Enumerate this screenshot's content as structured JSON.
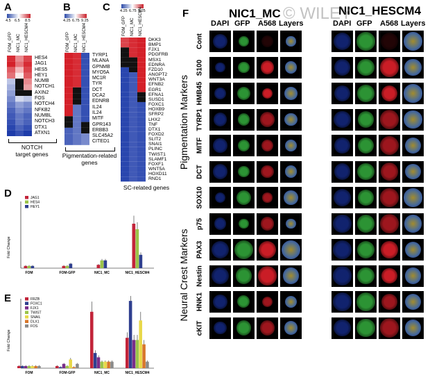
{
  "panels": {
    "A": "A",
    "B": "B",
    "C": "C",
    "D": "D",
    "E": "E",
    "F": "F"
  },
  "panel_a": {
    "scale": [
      "4.5",
      "6.5",
      "8.5"
    ],
    "cols": [
      "FOM_GFP",
      "NIC1_MC",
      "NIC1_HESCM4"
    ],
    "genes": [
      "HES4",
      "JAG1",
      "HES5",
      "HEY1",
      "NUMB",
      "NOTCH1",
      "AXIN2",
      "FOS",
      "NOTCH4",
      "NFKB2",
      "NUMBL",
      "NOTCH3",
      "DTX1",
      "ATXN1"
    ],
    "caption_line1": "NOTCH",
    "caption_line2": "target genes"
  },
  "panel_b": {
    "scale": [
      "4.25",
      "6.75",
      "9.25"
    ],
    "cols": [
      "FOM_GFP",
      "NIC1_MC",
      "NIC1_HESCM4"
    ],
    "genes": [
      "TYRP1",
      "MLANA",
      "GPNMB",
      "MYO5A",
      "MC1R",
      "TYR",
      "DCT",
      "DCA2",
      "EDNRB",
      "IL24",
      "IL24",
      "MITF",
      "GPR143",
      "ERBB3",
      "SLC45A2",
      "CITED1"
    ],
    "caption_line1": "Pigmentation-related",
    "caption_line2": "genes"
  },
  "panel_c": {
    "scale": [
      "4.25",
      "6.75",
      "9.25"
    ],
    "cols": [
      "FOM_GFP",
      "NIC1_MC",
      "NIC1_HESCM4"
    ],
    "genes": [
      "DKK3",
      "BMP1",
      "FJX1",
      "PDGFRB",
      "MSX1",
      "EDNRA",
      "FZD10",
      "ANGPT2",
      "WNT3A",
      "EFNB2",
      "EGR1",
      "EFNA1",
      "SUSD1",
      "FOXC1",
      "HOXB9",
      "SFRP2",
      "LHX2",
      "TNF",
      "DTX1",
      "FOXD2",
      "SLIT2",
      "SNAI1",
      "PLINC",
      "TWIST1",
      "SLAMF1",
      "FOXF1",
      "WNT5A",
      "HOXD11",
      "RND1"
    ],
    "caption": "SC-related genes"
  },
  "panel_d": {
    "ylabel": "Fold Change",
    "legend": [
      "JAG1",
      "HES4",
      "HEY1"
    ],
    "categories": [
      "FOM",
      "FOM-GFP",
      "NIC1_MC",
      "NIC1_HESCM4"
    ],
    "colors": [
      "#c2243a",
      "#9bc44a",
      "#2f3f8f"
    ]
  },
  "panel_e": {
    "ylabel": "Fold Change",
    "legend": [
      "FRZB",
      "FOXC1",
      "FJX1",
      "TWIST",
      "SNAIL",
      "DLX1",
      "FOS"
    ],
    "categories": [
      "FOM",
      "FOM-GFP",
      "NIC1_MC",
      "NIC1_HESCM4"
    ],
    "colors": [
      "#c2243a",
      "#2f3f8f",
      "#7a2d8a",
      "#9bc44a",
      "#e8d84a",
      "#d8762a",
      "#8a8a8a"
    ]
  },
  "chart_data": [
    {
      "type": "bar",
      "categories": [
        "FOM",
        "FOM-GFP",
        "NIC1_MC",
        "NIC1_HESCM4"
      ],
      "series": [
        {
          "name": "JAG1",
          "values": [
            1,
            1,
            1.5,
            20
          ]
        },
        {
          "name": "HES4",
          "values": [
            1,
            1,
            3.5,
            17.5
          ]
        },
        {
          "name": "HEY1",
          "values": [
            1,
            2,
            3.5,
            6
          ]
        }
      ],
      "ylabel": "Fold Change",
      "ylim": [
        0,
        30
      ],
      "legend": "top-left"
    },
    {
      "type": "bar",
      "categories": [
        "FOM",
        "FOM-GFP",
        "NIC1_MC",
        "NIC1_HESCM4"
      ],
      "series": [
        {
          "name": "FRZB",
          "values": [
            1,
            1,
            26,
            14
          ]
        },
        {
          "name": "FOXC1",
          "values": [
            1,
            0.5,
            7,
            31
          ]
        },
        {
          "name": "FJX1",
          "values": [
            1,
            2,
            5,
            13
          ]
        },
        {
          "name": "TWIST",
          "values": [
            1,
            1,
            3,
            13
          ]
        },
        {
          "name": "SNAIL",
          "values": [
            1,
            4,
            3,
            22
          ]
        },
        {
          "name": "DLX1",
          "values": [
            1,
            0.5,
            3,
            11
          ]
        },
        {
          "name": "FOS",
          "values": [
            1,
            2,
            3,
            3
          ]
        }
      ],
      "ylabel": "Fold Change",
      "legend": "top-left"
    }
  ],
  "panel_f": {
    "title_left": "NIC1_MC",
    "title_right": "NIC1_HESCM4",
    "watermark": "© WILEY",
    "channels": [
      "DAPI",
      "GFP",
      "A568",
      "Layers"
    ],
    "rows": [
      "Cont",
      "S100",
      "HMB45",
      "TYRP1",
      "MITF",
      "DCT",
      "SOX10",
      "p75",
      "PAX3",
      "Nestin",
      "HNK1",
      "cKIT"
    ],
    "group_top": "Pigmentation Markers",
    "group_bottom": "Neural Crest Markers"
  }
}
